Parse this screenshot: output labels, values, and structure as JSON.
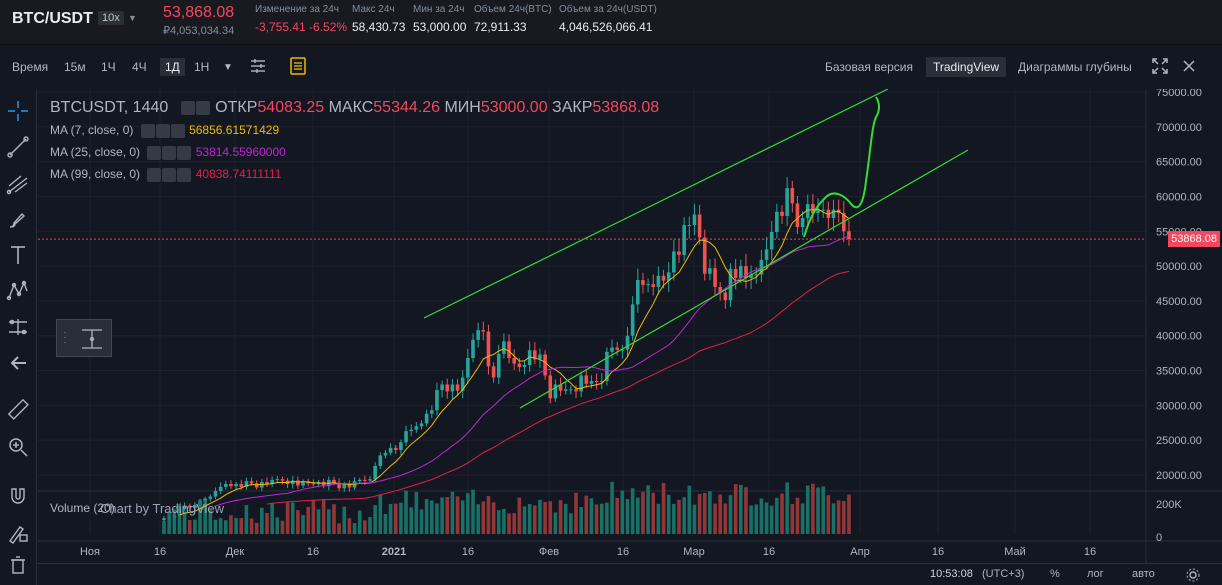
{
  "header": {
    "pair": "BTC/USDT",
    "leverage": "10x",
    "price": "53,868.08",
    "price_sub": "₽4,053,034.34",
    "stats": [
      {
        "label": "Изменение за 24ч",
        "value": "-3,755.41 -6.52%",
        "negative": true
      },
      {
        "label": "Макс 24ч",
        "value": "58,430.73",
        "negative": false
      },
      {
        "label": "Мин за 24ч",
        "value": "53,000.00",
        "negative": false
      },
      {
        "label": "Объем 24ч(BTC)",
        "value": "72,911.33",
        "negative": false
      },
      {
        "label": "Объем за 24ч(USDT)",
        "value": "4,046,526,066.41",
        "negative": false
      }
    ]
  },
  "toolbar": {
    "intervals": [
      "Время",
      "15м",
      "1Ч",
      "4Ч",
      "1Д",
      "1Н"
    ],
    "active_interval": "1Д",
    "views": [
      "Базовая версия",
      "TradingView",
      "Диаграммы глубины"
    ],
    "active_view": "TradingView"
  },
  "legend": {
    "symbol": "BTCUSDT, 1440",
    "open_label": "ОТКР",
    "open": "54083.25",
    "high_label": "МАКС",
    "high": "55344.26",
    "low_label": "МИН",
    "low": "53000.00",
    "close_label": "ЗАКР",
    "close": "53868.08",
    "ma": [
      {
        "name": "MA (7, close, 0)",
        "value": "56856.61571429",
        "color": "#f0b90b"
      },
      {
        "name": "MA (25, close, 0)",
        "value": "53814.55960000",
        "color": "#c026d3"
      },
      {
        "name": "MA (99, close, 0)",
        "value": "40838.74111111",
        "color": "#e0204a"
      }
    ]
  },
  "volume_label": "Volume (20)",
  "watermark": "Chart by TradingView",
  "last_price_tag": "53868.08",
  "price_axis": [
    "75000.00",
    "70000.00",
    "65000.00",
    "60000.00",
    "55000.00",
    "50000.00",
    "45000.00",
    "40000.00",
    "35000.00",
    "30000.00",
    "25000.00",
    "20000.00"
  ],
  "volume_axis": [
    "200K",
    "0"
  ],
  "time_axis": [
    "Ноя",
    "16",
    "Дек",
    "16",
    "2021",
    "16",
    "Фев",
    "16",
    "Мар",
    "16",
    "Апр",
    "16",
    "Май",
    "16"
  ],
  "bottombar": {
    "time": "10:53:08",
    "tz": "(UTC+3)",
    "percent": "%",
    "log": "лог",
    "auto": "авто"
  },
  "colors": {
    "up": "#26a69a",
    "down": "#ef5350",
    "channel": "#33dd33",
    "bg": "#131722"
  },
  "chart_data": {
    "type": "candlestick",
    "closes": [
      13800,
      13900,
      14200,
      15100,
      15600,
      15300,
      15700,
      16300,
      16600,
      16900,
      17700,
      18300,
      18700,
      18400,
      18700,
      18300,
      19100,
      18800,
      18200,
      19000,
      18700,
      19300,
      19400,
      19200,
      18700,
      19200,
      18500,
      19100,
      18800,
      18700,
      19000,
      18400,
      19300,
      18900,
      18100,
      18700,
      18200,
      19100,
      19300,
      19200,
      19400,
      21300,
      22800,
      23200,
      23900,
      23600,
      24700,
      26300,
      26500,
      27000,
      27400,
      28800,
      29300,
      32200,
      33000,
      32000,
      33000,
      32100,
      34000,
      36800,
      39400,
      40800,
      40600,
      35600,
      34000,
      37400,
      39200,
      36800,
      36000,
      35500,
      35800,
      37900,
      36600,
      37300,
      34300,
      31000,
      33000,
      32100,
      32300,
      32300,
      32000,
      34300,
      33100,
      33500,
      33400,
      33500,
      37700,
      38300,
      38000,
      38000,
      40000,
      44500,
      48000,
      47300,
      47400,
      47000,
      48600,
      47900,
      49100,
      52100,
      51600,
      55900,
      55900,
      57400,
      54100,
      48900,
      49700,
      47000,
      46200,
      45100,
      49600,
      48300,
      50000,
      48300,
      48800,
      48800,
      50900,
      52400,
      54900,
      57800,
      57200,
      61200,
      59000,
      55600,
      56900,
      58900,
      57600,
      58100,
      58100,
      56900,
      58100,
      57600,
      55000,
      53868
    ]
  }
}
